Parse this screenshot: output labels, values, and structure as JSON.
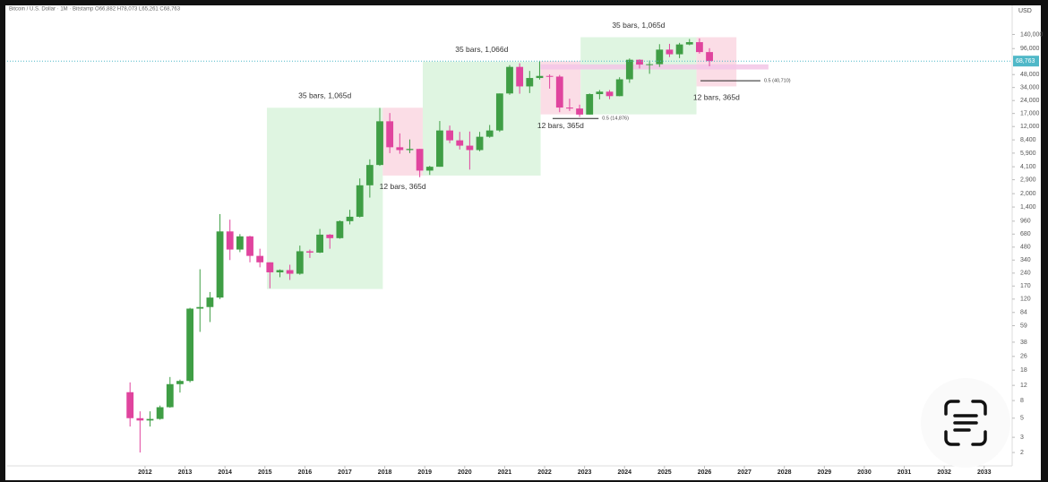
{
  "chart_data": {
    "type": "candlestick",
    "title": "Bitcoin / U.S. Dollar · 1M · Bitstamp  O66,882 H78,073 L65,261 C68,763",
    "y_axis_label": "USD",
    "log_scale": true,
    "grid": false,
    "up_color": "#3f9e45",
    "down_color": "#e0449e",
    "x": [
      2011.625,
      2011.875,
      2012.125,
      2012.375,
      2012.625,
      2012.875,
      2013.125,
      2013.375,
      2013.625,
      2013.875,
      2014.125,
      2014.375,
      2014.625,
      2014.875,
      2015.125,
      2015.375,
      2015.625,
      2015.875,
      2016.125,
      2016.375,
      2016.625,
      2016.875,
      2017.125,
      2017.375,
      2017.625,
      2017.875,
      2018.125,
      2018.375,
      2018.625,
      2018.875,
      2019.125,
      2019.375,
      2019.625,
      2019.875,
      2020.125,
      2020.375,
      2020.625,
      2020.875,
      2021.125,
      2021.375,
      2021.625,
      2021.875,
      2022.125,
      2022.375,
      2022.625,
      2022.875,
      2023.125,
      2023.375,
      2023.625,
      2023.875,
      2024.125,
      2024.375,
      2024.625,
      2024.875,
      2025.125,
      2025.375,
      2025.625,
      2025.875,
      2026.125
    ],
    "open": [
      10,
      5,
      4.7,
      4.9,
      6.7,
      12.4,
      13.5,
      93,
      97,
      125,
      730,
      450,
      640,
      380,
      320,
      245,
      260,
      236,
      430,
      415,
      670,
      610,
      960,
      1080,
      2500,
      4300,
      13800,
      6900,
      6400,
      6600,
      3700,
      4100,
      10800,
      8300,
      7200,
      6400,
      9130,
      10800,
      29000,
      58900,
      35000,
      43800,
      46300,
      45500,
      19900,
      19400,
      16500,
      28500,
      30400,
      27000,
      42300,
      71300,
      62700,
      63300,
      93400,
      82500,
      107200,
      114000,
      87500
    ],
    "high": [
      13,
      6,
      6,
      7,
      15,
      14,
      95,
      266,
      145,
      1160,
      1000,
      680,
      650,
      460,
      320,
      265,
      300,
      500,
      450,
      780,
      680,
      980,
      1300,
      3000,
      5000,
      19700,
      17200,
      9990,
      8500,
      6600,
      4200,
      13900,
      12300,
      10400,
      10500,
      10400,
      12500,
      29000,
      61800,
      64900,
      52900,
      69000,
      48200,
      47500,
      25200,
      21500,
      29000,
      31800,
      31800,
      44700,
      73800,
      72000,
      70000,
      108000,
      109000,
      111900,
      124000,
      126000,
      97000
    ],
    "low": [
      4,
      2,
      4,
      4.8,
      6.6,
      9.9,
      13,
      50,
      65,
      120,
      340,
      420,
      320,
      280,
      160,
      215,
      200,
      230,
      360,
      410,
      460,
      600,
      880,
      1060,
      1800,
      4200,
      5900,
      5800,
      5900,
      3100,
      3300,
      4100,
      7700,
      6500,
      3800,
      6200,
      8900,
      10400,
      28000,
      28800,
      29300,
      42000,
      33000,
      17600,
      18200,
      15500,
      16500,
      24800,
      24900,
      26900,
      38500,
      56500,
      49000,
      58900,
      76600,
      74500,
      105000,
      84000,
      60000
    ],
    "close": [
      5,
      4.7,
      4.9,
      6.7,
      12.4,
      13.5,
      93,
      97,
      125,
      730,
      450,
      640,
      380,
      320,
      245,
      260,
      236,
      430,
      415,
      670,
      610,
      960,
      1080,
      2500,
      4300,
      13800,
      6900,
      6400,
      6600,
      3700,
      4100,
      10800,
      8300,
      7200,
      6400,
      9130,
      10800,
      29000,
      58900,
      35000,
      43800,
      46300,
      45500,
      19900,
      19400,
      16500,
      28500,
      30400,
      27000,
      42300,
      71300,
      62700,
      63300,
      93400,
      82500,
      107200,
      114000,
      87500,
      68763
    ],
    "last_price": {
      "value": 68763,
      "label": "68,763"
    },
    "xlim": [
      2008.55,
      2033.7
    ],
    "xticks": [
      2012,
      2013,
      2014,
      2015,
      2016,
      2017,
      2018,
      2019,
      2020,
      2021,
      2022,
      2023,
      2024,
      2025,
      2026,
      2027,
      2028,
      2029,
      2030,
      2031,
      2032,
      2033
    ],
    "ylim": [
      1.4,
      290000
    ],
    "yticks": [
      {
        "value": 140000,
        "label": "140,000"
      },
      {
        "value": 96000,
        "label": "96,000"
      },
      {
        "value": 48000,
        "label": "48,000"
      },
      {
        "value": 34000,
        "label": "34,000"
      },
      {
        "value": 24000,
        "label": "24,000"
      },
      {
        "value": 17000,
        "label": "17,000"
      },
      {
        "value": 12000,
        "label": "12,000"
      },
      {
        "value": 8400,
        "label": "8,400"
      },
      {
        "value": 5900,
        "label": "5,900"
      },
      {
        "value": 4100,
        "label": "4,100"
      },
      {
        "value": 2900,
        "label": "2,900"
      },
      {
        "value": 2000,
        "label": "2,000"
      },
      {
        "value": 1400,
        "label": "1,400"
      },
      960,
      680,
      480,
      340,
      240,
      170,
      120,
      84,
      59,
      38,
      26,
      18,
      12,
      8,
      5,
      3,
      2
    ],
    "boxes": [
      {
        "x": [
          2015.05,
          2017.95
        ],
        "y": [
          157,
          19800
        ],
        "color": "#dff5e1",
        "label": "35 bars, 1,065d",
        "label_position": "above"
      },
      {
        "x": [
          2017.95,
          2018.95
        ],
        "y": [
          3240,
          19800
        ],
        "color": "#fbdde6",
        "label": "12 bars, 365d",
        "label_position": "below"
      },
      {
        "x": [
          2018.95,
          2021.9
        ],
        "y": [
          3240,
          68000
        ],
        "color": "#dff5e1",
        "label": "35 bars, 1,066d",
        "label_position": "above"
      },
      {
        "x": [
          2021.9,
          2022.9
        ],
        "y": [
          16600,
          68800
        ],
        "color": "#fbdde6",
        "label": "12 bars, 365d",
        "label_position": "below"
      },
      {
        "x": [
          2022.9,
          2025.8
        ],
        "y": [
          16600,
          130000
        ],
        "color": "#dff5e1",
        "label": "35 bars, 1,065d",
        "label_position": "above"
      },
      {
        "x": [
          2025.8,
          2026.8
        ],
        "y": [
          35000,
          130000
        ],
        "color": "#fbdde6",
        "label": "12 bars, 365d",
        "label_position": "below"
      }
    ],
    "band": {
      "x": [
        2021.9,
        2027.6
      ],
      "y": [
        55000,
        63000
      ],
      "color": "#f3c6e6"
    },
    "levels": [
      {
        "x": [
          2022.2,
          2023.35
        ],
        "value": 14876,
        "label": "0.5 (14,876)"
      },
      {
        "x": [
          2025.9,
          2027.4
        ],
        "value": 40710,
        "label": "0.5 (40,710)"
      }
    ]
  }
}
